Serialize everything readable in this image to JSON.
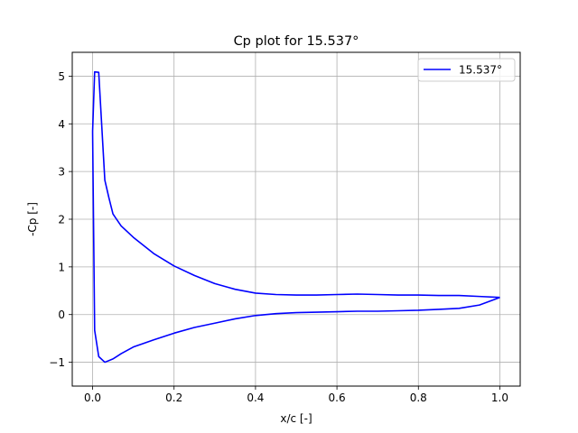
{
  "chart_data": {
    "type": "line",
    "title": "Cp plot for 15.537°",
    "xlabel": "x/c [-]",
    "ylabel": "-Cp [-]",
    "xlim": [
      -0.05,
      1.05
    ],
    "ylim": [
      -1.5,
      5.5
    ],
    "xticks": [
      0.0,
      0.2,
      0.4,
      0.6,
      0.8,
      1.0
    ],
    "xtick_labels": [
      "0.0",
      "0.2",
      "0.4",
      "0.6",
      "0.8",
      "1.0"
    ],
    "yticks": [
      -1,
      0,
      1,
      2,
      3,
      4,
      5
    ],
    "ytick_labels": [
      "−1",
      "0",
      "1",
      "2",
      "3",
      "4",
      "5"
    ],
    "grid": true,
    "legend_position": "top-right",
    "series": [
      {
        "name": "15.537°",
        "color": "#0000ff",
        "x": [
          1.0,
          0.95,
          0.9,
          0.85,
          0.8,
          0.75,
          0.7,
          0.65,
          0.6,
          0.55,
          0.5,
          0.45,
          0.4,
          0.35,
          0.3,
          0.25,
          0.2,
          0.15,
          0.1,
          0.07,
          0.05,
          0.04,
          0.03,
          0.015,
          0.005,
          0.0,
          0.0,
          0.005,
          0.015,
          0.03,
          0.05,
          0.07,
          0.1,
          0.15,
          0.2,
          0.25,
          0.3,
          0.35,
          0.4,
          0.45,
          0.5,
          0.55,
          0.6,
          0.65,
          0.7,
          0.75,
          0.8,
          0.85,
          0.9,
          0.95,
          1.0
        ],
        "y": [
          0.36,
          0.38,
          0.4,
          0.4,
          0.41,
          0.41,
          0.42,
          0.43,
          0.42,
          0.41,
          0.41,
          0.42,
          0.45,
          0.53,
          0.65,
          0.82,
          1.02,
          1.28,
          1.62,
          1.86,
          2.11,
          2.45,
          2.82,
          5.08,
          5.09,
          3.85,
          3.8,
          -0.33,
          -0.88,
          -1.0,
          -0.93,
          -0.82,
          -0.68,
          -0.53,
          -0.39,
          -0.27,
          -0.18,
          -0.09,
          -0.02,
          0.02,
          0.04,
          0.05,
          0.06,
          0.07,
          0.07,
          0.08,
          0.09,
          0.11,
          0.13,
          0.2,
          0.36
        ]
      }
    ]
  }
}
